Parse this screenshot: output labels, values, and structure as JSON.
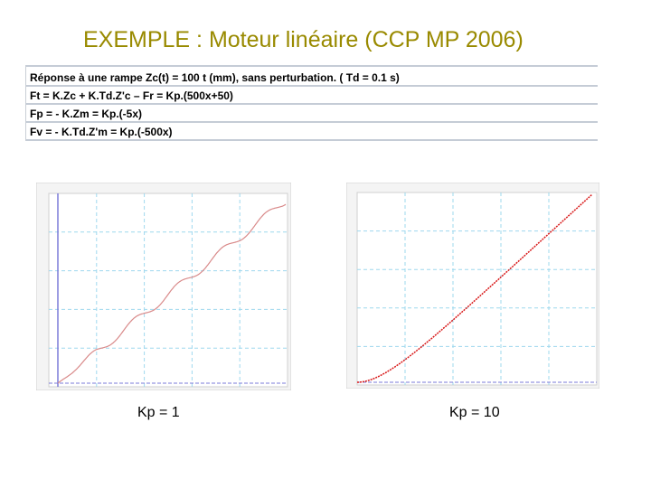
{
  "title": "EXEMPLE : Moteur linéaire (CCP MP 2006)",
  "conditions": [
    "Réponse à une rampe Zc(t) = 100 t  (mm), sans perturbation. ( Td = 0.1 s)",
    "Ft = K.Zc + K.Td.Z'c – Fr    = Kp.(500x+50)",
    "Fp = - K.Zm = Kp.(-5x)",
    "Fv = - K.Td.Z'm = Kp.(-500x)"
  ],
  "captions": [
    "Kp = 1",
    "Kp = 10"
  ],
  "colors": {
    "title": "#998a00",
    "curve_left": "#d98a8a",
    "curve_right": "#d81818",
    "grid": "#9ed8ee",
    "reference_line": "#7b7bd8"
  }
}
